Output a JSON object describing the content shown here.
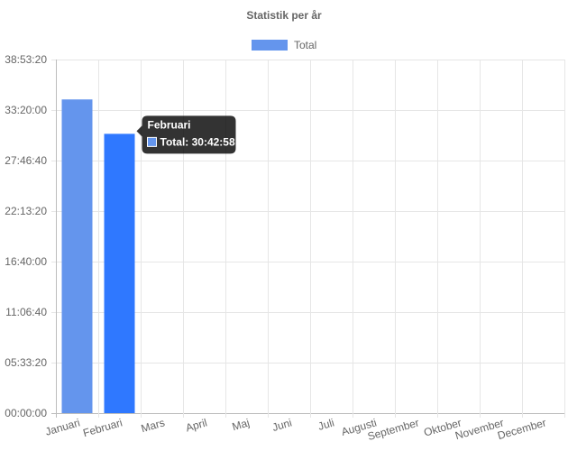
{
  "chart_data": {
    "type": "bar",
    "title": "Statistik per år",
    "categories": [
      "Januari",
      "Februari",
      "Mars",
      "April",
      "Maj",
      "Juni",
      "Juli",
      "Augusti",
      "September",
      "Oktober",
      "November",
      "December"
    ],
    "series": [
      {
        "name": "Total",
        "color": "#6495ED",
        "highlight_color": "#2F78FF",
        "values_seconds": [
          124200,
          110578,
          0,
          0,
          0,
          0,
          0,
          0,
          0,
          0,
          0,
          0
        ]
      }
    ],
    "y_ticks": [
      "00:00:00",
      "05:33:20",
      "11:06:40",
      "16:40:00",
      "22:13:20",
      "27:46:40",
      "33:20:00",
      "38:53:20"
    ],
    "y_tick_values_seconds": [
      0,
      20000,
      40000,
      60000,
      80000,
      100000,
      120000,
      140000
    ],
    "ylim_seconds": [
      0,
      140000
    ],
    "grid": true,
    "legend_position": "top-center",
    "tooltip": {
      "title": "Februari",
      "label": "Total: 30:42:58",
      "category": "Februari"
    }
  }
}
